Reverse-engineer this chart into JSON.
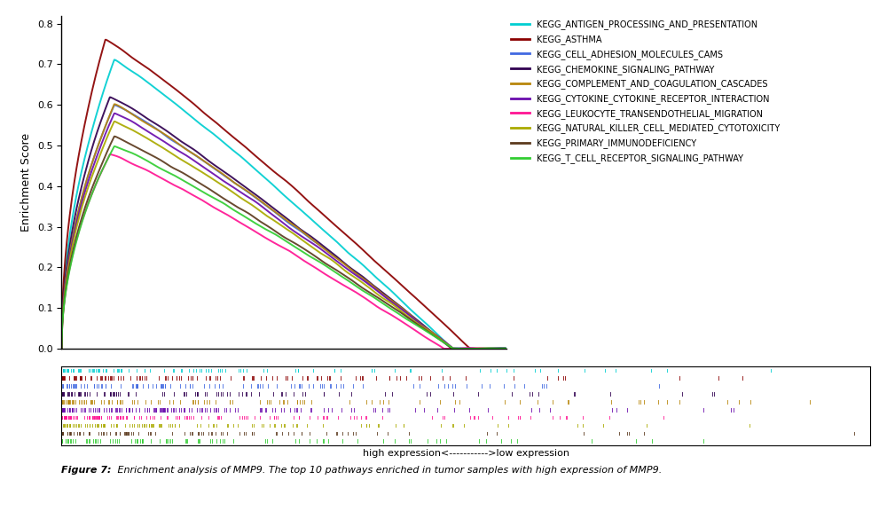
{
  "pathways": [
    "KEGG_ANTIGEN_PROCESSING_AND_PRESENTATION",
    "KEGG_ASTHMA",
    "KEGG_CELL_ADHESION_MOLECULES_CAMS",
    "KEGG_CHEMOKINE_SIGNALING_PATHWAY",
    "KEGG_COMPLEMENT_AND_COAGULATION_CASCADES",
    "KEGG_CYTOKINE_CYTOKINE_RECEPTOR_INTERACTION",
    "KEGG_LEUKOCYTE_TRANSENDOTHELIAL_MIGRATION",
    "KEGG_NATURAL_KILLER_CELL_MEDIATED_CYTOTOXICITY",
    "KEGG_PRIMARY_IMMUNODEFICIENCY",
    "KEGG_T_CELL_RECEPTOR_SIGNALING_PATHWAY"
  ],
  "colors": [
    "#00CED1",
    "#8B0000",
    "#4169E1",
    "#300050",
    "#B8860B",
    "#6A0DAD",
    "#FF1493",
    "#AAAA00",
    "#5C3A1E",
    "#32CD32"
  ],
  "peak_positions": [
    0.12,
    0.1,
    0.12,
    0.11,
    0.12,
    0.12,
    0.11,
    0.12,
    0.12,
    0.12
  ],
  "peak_heights": [
    0.71,
    0.76,
    0.6,
    0.62,
    0.6,
    0.58,
    0.48,
    0.56,
    0.52,
    0.5
  ],
  "end_x": [
    0.88,
    0.92,
    0.88,
    0.88,
    0.88,
    0.88,
    0.86,
    0.88,
    0.88,
    0.88
  ],
  "ylabel": "Enrichment Score",
  "xlabel_bottom": "high expression<----------->low expression",
  "ylim": [
    0.0,
    0.82
  ],
  "xlim": [
    0.0,
    1.0
  ],
  "figure_caption_bold": "Figure 7: ",
  "figure_caption_normal": " Enrichment analysis of MMP9. The top 10 pathways enriched in tumor samples with high expression of MMP9.",
  "background_color": "#FFFFFF",
  "noise_seed": 42
}
